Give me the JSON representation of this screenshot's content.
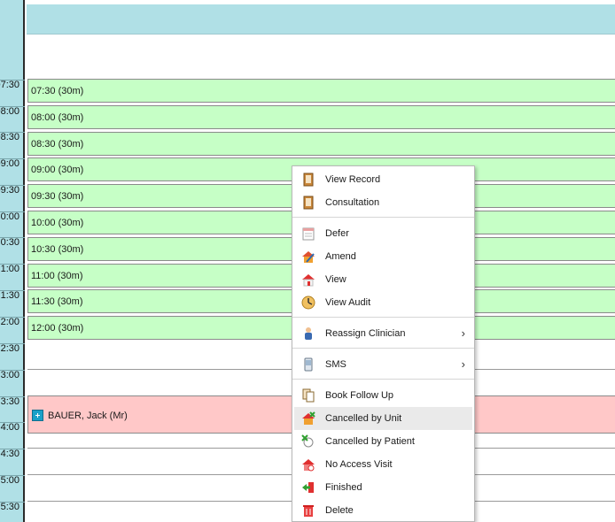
{
  "time_gutter": {
    "labels": [
      "07:30",
      "08:00",
      "08:30",
      "09:00",
      "09:30",
      "0:00",
      "0:30",
      "1:00",
      "1:30",
      "2:00",
      "2:30",
      "3:00",
      "3:30",
      "4:00",
      "4:30",
      "5:00",
      "5:30"
    ]
  },
  "slots": [
    {
      "label": "07:30 (30m)"
    },
    {
      "label": "08:00 (30m)"
    },
    {
      "label": "08:30 (30m)"
    },
    {
      "label": "09:00 (30m)"
    },
    {
      "label": "09:30 (30m)"
    },
    {
      "label": "10:00 (30m)"
    },
    {
      "label": "10:30 (30m)"
    },
    {
      "label": "11:00 (30m)"
    },
    {
      "label": "11:30 (30m)"
    },
    {
      "label": "12:00 (30m)"
    }
  ],
  "appointment": {
    "patient": "BAUER, Jack (Mr)",
    "icon": "medical-kit-icon"
  },
  "context_menu": {
    "items": [
      {
        "label": "View Record",
        "icon": "record-icon"
      },
      {
        "label": "Consultation",
        "icon": "consultation-icon"
      },
      {
        "label": "Defer",
        "icon": "calendar-icon"
      },
      {
        "label": "Amend",
        "icon": "amend-icon"
      },
      {
        "label": "View",
        "icon": "house-icon"
      },
      {
        "label": "View Audit",
        "icon": "clock-icon"
      },
      {
        "label": "Reassign Clinician",
        "icon": "person-icon",
        "submenu": "›"
      },
      {
        "label": "SMS",
        "icon": "phone-icon",
        "submenu": "›"
      },
      {
        "label": "Book Follow Up",
        "icon": "documents-icon"
      },
      {
        "label": "Cancelled by Unit",
        "icon": "house-cancel-icon"
      },
      {
        "label": "Cancelled by Patient",
        "icon": "person-cancel-icon"
      },
      {
        "label": "No Access Visit",
        "icon": "house-noaccess-icon"
      },
      {
        "label": "Finished",
        "icon": "exit-icon"
      },
      {
        "label": "Delete",
        "icon": "trash-icon"
      }
    ]
  },
  "colors": {
    "gutter": "#b0e0e6",
    "slot_free": "#c6ffc6",
    "slot_booked": "#ffc8c8"
  }
}
